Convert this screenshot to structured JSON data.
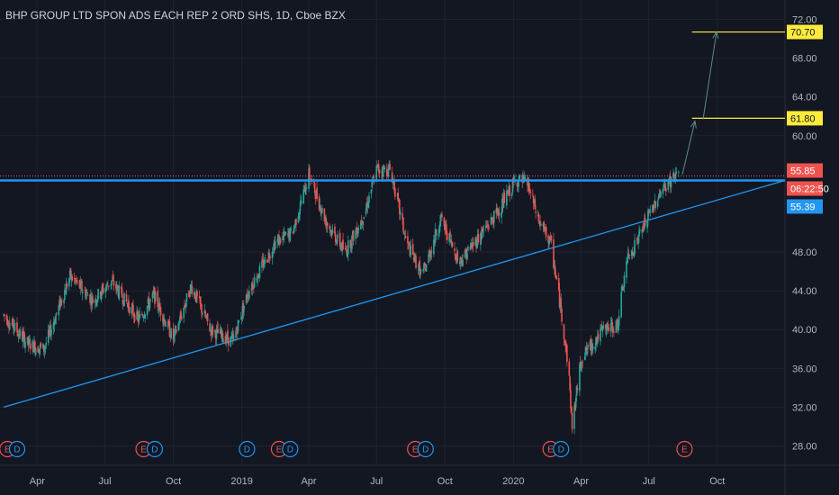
{
  "title": "BHP GROUP LTD SPON ADS EACH REP 2 ORD SHS, 1D, Cboe BZX",
  "colors": {
    "background": "#131722",
    "up": "#26a69a",
    "down": "#ef5350",
    "trendline": "#2196f3",
    "target": "#ffeb3b",
    "grid": "#1f2330"
  },
  "chart_data": {
    "type": "candlestick",
    "ylim": [
      26,
      74
    ],
    "y_ticks": [
      "72.00",
      "68.00",
      "64.00",
      "60.00",
      "48.00",
      "44.00",
      "40.00",
      "36.00",
      "32.00",
      "28.00"
    ],
    "x_ticks": [
      "Apr",
      "Jul",
      "Oct",
      "2019",
      "Apr",
      "Jul",
      "Oct",
      "2020",
      "Apr",
      "Jul",
      "Oct"
    ],
    "price_path": [
      [
        "2018-02-15",
        41.5
      ],
      [
        "2018-03-20",
        38.5
      ],
      [
        "2018-04-10",
        38.0
      ],
      [
        "2018-05-15",
        45.5
      ],
      [
        "2018-06-15",
        43.0
      ],
      [
        "2018-07-10",
        45.0
      ],
      [
        "2018-08-15",
        41.0
      ],
      [
        "2018-09-05",
        43.5
      ],
      [
        "2018-10-01",
        39.0
      ],
      [
        "2018-10-25",
        44.5
      ],
      [
        "2018-11-20",
        40.0
      ],
      [
        "2018-12-20",
        38.8
      ],
      [
        "2019-01-10",
        44.0
      ],
      [
        "2019-02-15",
        49.0
      ],
      [
        "2019-03-10",
        50.0
      ],
      [
        "2019-04-01",
        56.0
      ],
      [
        "2019-04-25",
        51.0
      ],
      [
        "2019-05-20",
        48.0
      ],
      [
        "2019-06-15",
        52.0
      ],
      [
        "2019-07-01",
        56.5
      ],
      [
        "2019-07-20",
        56.5
      ],
      [
        "2019-08-10",
        49.0
      ],
      [
        "2019-09-01",
        45.5
      ],
      [
        "2019-09-25",
        51.5
      ],
      [
        "2019-10-20",
        47.0
      ],
      [
        "2019-11-10",
        49.0
      ],
      [
        "2019-12-10",
        52.0
      ],
      [
        "2020-01-05",
        55.5
      ],
      [
        "2020-01-20",
        55.0
      ],
      [
        "2020-02-05",
        51.0
      ],
      [
        "2020-02-20",
        49.0
      ],
      [
        "2020-03-05",
        42.0
      ],
      [
        "2020-03-15",
        36.0
      ],
      [
        "2020-03-20",
        30.0
      ],
      [
        "2020-04-01",
        37.0
      ],
      [
        "2020-05-01",
        40.0
      ],
      [
        "2020-05-20",
        40.5
      ],
      [
        "2020-06-01",
        47.0
      ],
      [
        "2020-06-20",
        50.0
      ],
      [
        "2020-07-15",
        54.0
      ],
      [
        "2020-08-01",
        55.5
      ],
      [
        "2020-08-10",
        56.3
      ]
    ],
    "horizontal_levels": [
      {
        "label": "55.85",
        "value": 55.85,
        "kind": "last-price"
      },
      {
        "label": "55.39",
        "value": 55.39,
        "kind": "resistance"
      }
    ],
    "countdown": "06:22:50",
    "targets": [
      {
        "label": "61.80",
        "value": 61.8
      },
      {
        "label": "70.70",
        "value": 70.7
      }
    ],
    "trendline": {
      "from": [
        "2018-02-15",
        32.0
      ],
      "to": [
        "2020-12-31",
        55.39
      ]
    },
    "projection": [
      [
        "2020-08-15",
        56.0
      ],
      [
        "2020-09-01",
        61.5
      ],
      [
        "2020-09-30",
        70.7
      ]
    ],
    "events": [
      {
        "letter": "E",
        "kind": "earnings",
        "date": "2018-02-20"
      },
      {
        "letter": "D",
        "kind": "dividend",
        "date": "2018-03-05"
      },
      {
        "letter": "E",
        "kind": "earnings",
        "date": "2018-08-22"
      },
      {
        "letter": "D",
        "kind": "dividend",
        "date": "2018-09-06"
      },
      {
        "letter": "D",
        "kind": "dividend",
        "date": "2019-01-08"
      },
      {
        "letter": "E",
        "kind": "earnings",
        "date": "2019-02-20"
      },
      {
        "letter": "D",
        "kind": "dividend",
        "date": "2019-03-07"
      },
      {
        "letter": "E",
        "kind": "earnings",
        "date": "2019-08-22"
      },
      {
        "letter": "D",
        "kind": "dividend",
        "date": "2019-09-05"
      },
      {
        "letter": "E",
        "kind": "earnings",
        "date": "2020-02-20"
      },
      {
        "letter": "D",
        "kind": "dividend",
        "date": "2020-03-05"
      },
      {
        "letter": "E",
        "kind": "earnings",
        "date": "2020-08-18"
      }
    ]
  }
}
